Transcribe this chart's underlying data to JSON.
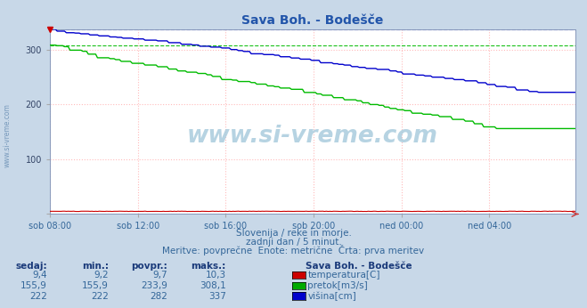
{
  "title": "Sava Boh. - Bodešče",
  "title_color": "#2255aa",
  "bg_color": "#c8d8e8",
  "plot_bg_color": "#ffffff",
  "grid_color": "#ffbbbb",
  "grid_style": "dotted",
  "xlabel_ticks": [
    "sob 08:00",
    "sob 12:00",
    "sob 16:00",
    "sob 20:00",
    "ned 00:00",
    "ned 04:00"
  ],
  "tick_positions": [
    0,
    48,
    96,
    144,
    192,
    240
  ],
  "total_points": 288,
  "ylim": [
    0,
    337
  ],
  "yticks": [
    0,
    100,
    200,
    300
  ],
  "subtitle1": "Slovenija / reke in morje.",
  "subtitle2": "zadnji dan / 5 minut.",
  "subtitle3": "Meritve: povprečne  Enote: metrične  Črta: prva meritev",
  "legend_title": "Sava Boh. - Bodešče",
  "legend_labels": [
    "temperatura[C]",
    "pretok[m3/s]",
    "višina[cm]"
  ],
  "legend_colors": [
    "#cc0000",
    "#00aa00",
    "#0000cc"
  ],
  "table_headers": [
    "sedaj:",
    "min.:",
    "povpr.:",
    "maks.:"
  ],
  "table_rows": [
    [
      "9,4",
      "9,2",
      "9,7",
      "10,3"
    ],
    [
      "155,9",
      "155,9",
      "233,9",
      "308,1"
    ],
    [
      "222",
      "222",
      "282",
      "337"
    ]
  ],
  "pretok_max": 308.1,
  "visina_max": 337,
  "temp_color": "#cc0000",
  "pretok_color": "#00bb00",
  "visina_color": "#0000cc",
  "watermark": "www.si-vreme.com",
  "watermark_color": "#aaccdd",
  "axis_color": "#0000aa",
  "left_label": "www.si-vreme.com",
  "left_label_color": "#7799bb"
}
